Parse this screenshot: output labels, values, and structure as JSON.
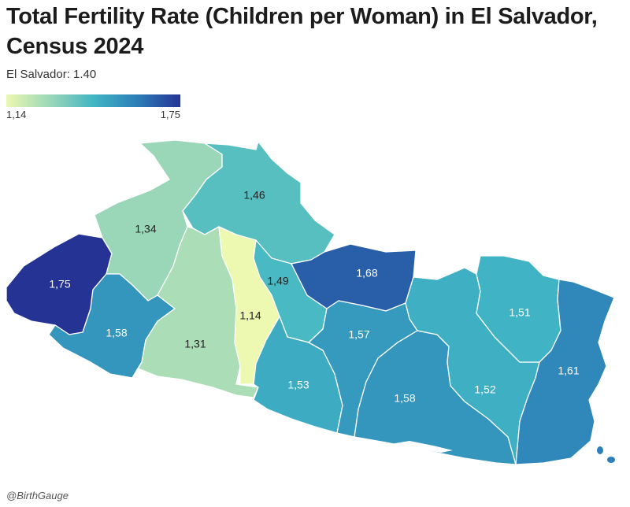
{
  "title": "Total Fertility Rate (Children per Woman) in El Salvador, Census 2024",
  "subtitle": "El Salvador: 1.40",
  "legend": {
    "min_label": "1,14",
    "max_label": "1,75",
    "min": 1.14,
    "max": 1.75
  },
  "colors": {
    "scale": [
      "#edf8b1",
      "#c7e9b4",
      "#7fcdbb",
      "#41b6c4",
      "#2c7fb8",
      "#253494"
    ],
    "region_border": "#ffffff"
  },
  "regions": [
    {
      "key": "ahuachapan",
      "label": "1,75",
      "value": 1.75
    },
    {
      "key": "santa_ana",
      "label": "1,34",
      "value": 1.34
    },
    {
      "key": "sonsonate",
      "label": "1,58",
      "value": 1.58
    },
    {
      "key": "chalatenango",
      "label": "1,46",
      "value": 1.46
    },
    {
      "key": "la_libertad",
      "label": "1,31",
      "value": 1.31
    },
    {
      "key": "san_salvador",
      "label": "1,14",
      "value": 1.14
    },
    {
      "key": "cuscatlan",
      "label": "1,49",
      "value": 1.49
    },
    {
      "key": "cabanas",
      "label": "1,68",
      "value": 1.68
    },
    {
      "key": "la_paz",
      "label": "1,53",
      "value": 1.53
    },
    {
      "key": "san_vicente",
      "label": "1,57",
      "value": 1.57
    },
    {
      "key": "usulutan",
      "label": "1,58",
      "value": 1.58
    },
    {
      "key": "san_miguel",
      "label": "1,52",
      "value": 1.52
    },
    {
      "key": "morazan",
      "label": "1,51",
      "value": 1.51
    },
    {
      "key": "la_union",
      "label": "1,61",
      "value": 1.61
    }
  ],
  "credit": "@BirthGauge"
}
